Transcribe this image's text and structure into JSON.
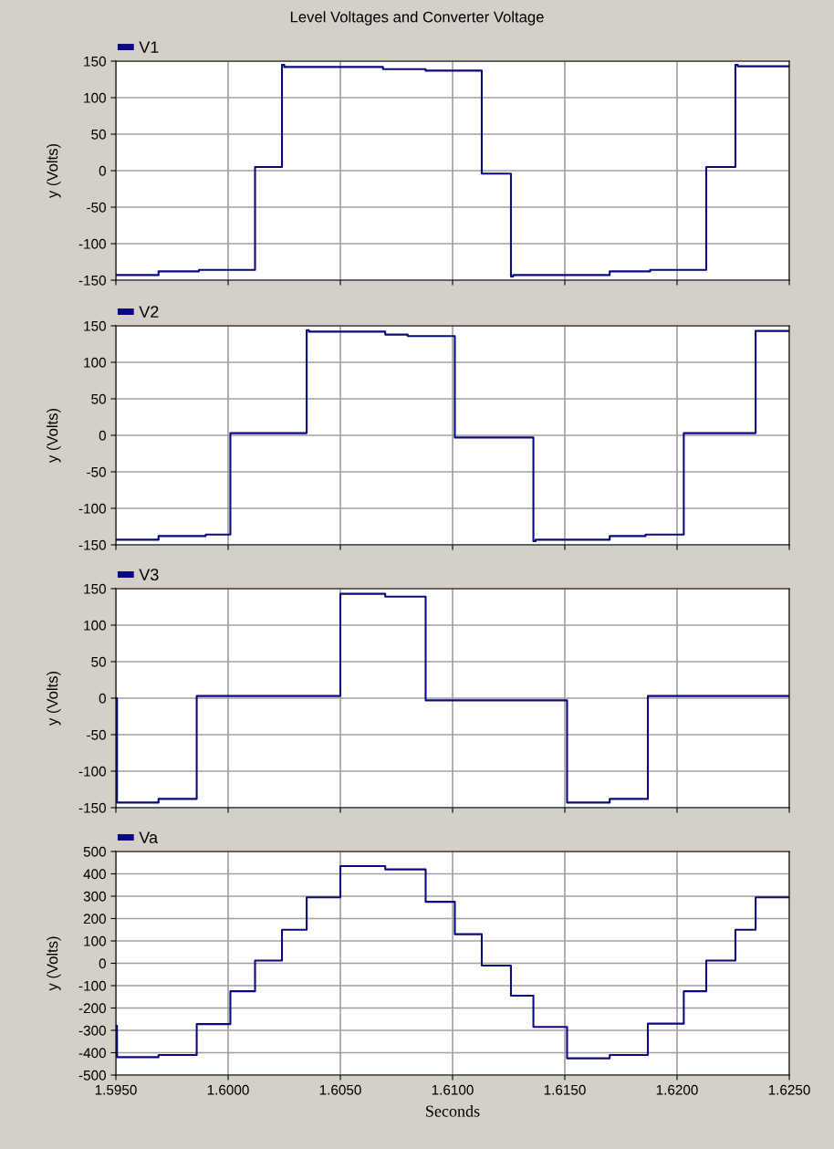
{
  "chart_data": [
    {
      "type": "step",
      "title": "Level Voltages and Converter Voltage",
      "ylabel": "y (Volts)",
      "legend": "top left",
      "grid": true,
      "tick_labels": "y",
      "xlim": [
        1.595,
        1.625
      ],
      "xticks": [
        {
          "value": 1.595,
          "label": null
        },
        {
          "value": 1.6,
          "label": null
        },
        {
          "value": 1.605,
          "label": null
        },
        {
          "value": 1.61,
          "label": null
        },
        {
          "value": 1.615,
          "label": null
        },
        {
          "value": 1.62,
          "label": null
        },
        {
          "value": 1.625,
          "label": null
        }
      ],
      "ylim": [
        -150,
        150
      ],
      "yticks": [
        -150,
        -100,
        -50,
        0,
        50,
        100,
        150
      ],
      "series": [
        {
          "name": "V1",
          "color": "#0a0a80",
          "x": [
            1.595,
            1.5969,
            1.5987,
            1.6012,
            1.6024,
            1.6025,
            1.6069,
            1.6088,
            1.6113,
            1.6126,
            1.6127,
            1.617,
            1.6188,
            1.6213,
            1.6226,
            1.6227,
            1.625
          ],
          "values": [
            -143,
            -138,
            -136,
            5,
            145,
            142,
            139,
            137,
            -4,
            -145,
            -143,
            -138,
            -136,
            5,
            145,
            143,
            143
          ]
        }
      ]
    },
    {
      "type": "step",
      "ylabel": "y (Volts)",
      "legend": "top left",
      "grid": true,
      "tick_labels": "y",
      "xlim": [
        1.595,
        1.625
      ],
      "xticks": [
        {
          "value": 1.595,
          "label": null
        },
        {
          "value": 1.6,
          "label": null
        },
        {
          "value": 1.605,
          "label": null
        },
        {
          "value": 1.61,
          "label": null
        },
        {
          "value": 1.615,
          "label": null
        },
        {
          "value": 1.62,
          "label": null
        },
        {
          "value": 1.625,
          "label": null
        }
      ],
      "ylim": [
        -150,
        150
      ],
      "yticks": [
        -150,
        -100,
        -50,
        0,
        50,
        100,
        150
      ],
      "series": [
        {
          "name": "V2",
          "color": "#0a0a80",
          "x": [
            1.595,
            1.5969,
            1.599,
            1.6001,
            1.6035,
            1.6036,
            1.607,
            1.608,
            1.6101,
            1.6136,
            1.6137,
            1.617,
            1.6186,
            1.6203,
            1.6235,
            1.625
          ],
          "values": [
            -143,
            -138,
            -136,
            3,
            144,
            142,
            138,
            136,
            -3,
            -145,
            -143,
            -138,
            -136,
            3,
            143,
            143
          ]
        }
      ]
    },
    {
      "type": "step",
      "ylabel": "y (Volts)",
      "legend": "top left",
      "grid": true,
      "tick_labels": "y",
      "xlim": [
        1.595,
        1.625
      ],
      "xticks": [
        {
          "value": 1.595,
          "label": null
        },
        {
          "value": 1.6,
          "label": null
        },
        {
          "value": 1.605,
          "label": null
        },
        {
          "value": 1.61,
          "label": null
        },
        {
          "value": 1.615,
          "label": null
        },
        {
          "value": 1.62,
          "label": null
        },
        {
          "value": 1.625,
          "label": null
        }
      ],
      "ylim": [
        -150,
        150
      ],
      "yticks": [
        -150,
        -100,
        -50,
        0,
        50,
        100,
        150
      ],
      "series": [
        {
          "name": "V3",
          "color": "#0a0a80",
          "x": [
            1.595,
            1.59505,
            1.5969,
            1.5986,
            1.605,
            1.607,
            1.6088,
            1.6151,
            1.617,
            1.6187,
            1.625
          ],
          "values": [
            0,
            -143,
            -138,
            3,
            143,
            139,
            -3,
            -143,
            -138,
            3,
            3
          ]
        }
      ]
    },
    {
      "type": "step",
      "ylabel": "y (Volts)",
      "xlabel": "Seconds",
      "legend": "top left",
      "grid": true,
      "xlim": [
        1.595,
        1.625
      ],
      "xticks": [
        {
          "value": 1.595,
          "label": "1.5950"
        },
        {
          "value": 1.6,
          "label": "1.6000"
        },
        {
          "value": 1.605,
          "label": "1.6050"
        },
        {
          "value": 1.61,
          "label": "1.6100"
        },
        {
          "value": 1.615,
          "label": "1.6150"
        },
        {
          "value": 1.62,
          "label": "1.6200"
        },
        {
          "value": 1.625,
          "label": "1.6250"
        }
      ],
      "ylim": [
        -500,
        500
      ],
      "yticks": [
        -500,
        -400,
        -300,
        -200,
        -100,
        0,
        100,
        200,
        300,
        400,
        500
      ],
      "series": [
        {
          "name": "Va",
          "color": "#0a0a80",
          "x": [
            1.595,
            1.59505,
            1.5969,
            1.5986,
            1.6001,
            1.6012,
            1.6024,
            1.6035,
            1.605,
            1.607,
            1.6088,
            1.6101,
            1.6113,
            1.6126,
            1.6136,
            1.6151,
            1.617,
            1.6187,
            1.6203,
            1.6213,
            1.6226,
            1.6235,
            1.625
          ],
          "values": [
            -280,
            -420,
            -410,
            -272,
            -125,
            12,
            150,
            295,
            435,
            420,
            275,
            130,
            -10,
            -145,
            -285,
            -425,
            -410,
            -270,
            -125,
            12,
            150,
            295,
            295
          ]
        }
      ]
    }
  ]
}
